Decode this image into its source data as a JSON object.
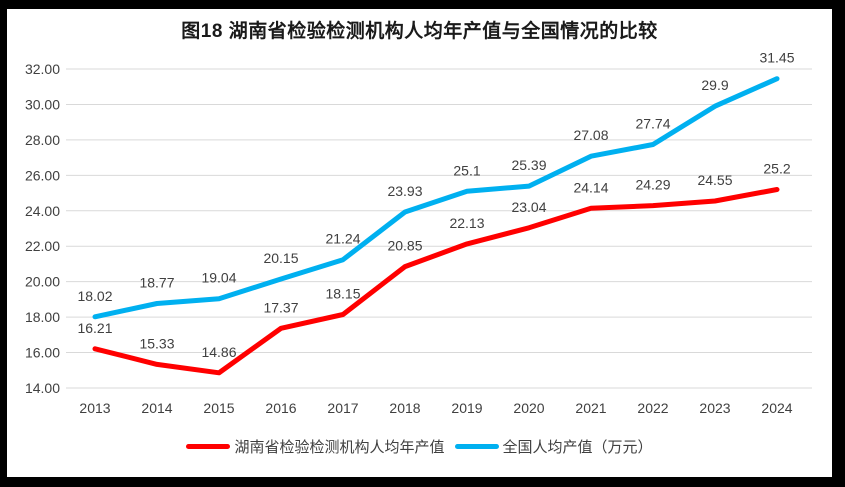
{
  "title": "图18 湖南省检验检测机构人均年产值与全国情况的比较",
  "chart_data": {
    "type": "line",
    "categories": [
      "2013",
      "2014",
      "2015",
      "2016",
      "2017",
      "2018",
      "2019",
      "2020",
      "2021",
      "2022",
      "2023",
      "2024"
    ],
    "series": [
      {
        "name": "湖南省检验检测机构人均年产值",
        "color": "#FF0000",
        "values": [
          16.21,
          15.33,
          14.86,
          17.37,
          18.15,
          20.85,
          22.13,
          23.04,
          24.14,
          24.29,
          24.55,
          25.2
        ],
        "labels": [
          "16.21",
          "15.33",
          "14.86",
          "17.37",
          "18.15",
          "20.85",
          "22.13",
          "23.04",
          "24.14",
          "24.29",
          "24.55",
          "25.2"
        ]
      },
      {
        "name": "全国人均产值（万元）",
        "color": "#00B0F0",
        "values": [
          18.02,
          18.77,
          19.04,
          20.15,
          21.24,
          23.93,
          25.1,
          25.39,
          27.08,
          27.74,
          29.9,
          31.45
        ],
        "labels": [
          "18.02",
          "18.77",
          "19.04",
          "20.15",
          "21.24",
          "23.93",
          "25.1",
          "25.39",
          "27.08",
          "27.74",
          "29.9",
          "31.45"
        ]
      }
    ],
    "title": "图18 湖南省检验检测机构人均年产值与全国情况的比较",
    "xlabel": "",
    "ylabel": "",
    "ylim": [
      14,
      32
    ],
    "ytick_step": 2,
    "ytick_labels": [
      "14.00",
      "16.00",
      "18.00",
      "20.00",
      "22.00",
      "24.00",
      "26.00",
      "28.00",
      "30.00",
      "32.00"
    ],
    "grid": true,
    "legend_position": "bottom",
    "colors": {
      "gridline": "#D9D9D9",
      "tick_label": "#404040",
      "data_label": "#404040",
      "frame_border": "#000000"
    }
  }
}
